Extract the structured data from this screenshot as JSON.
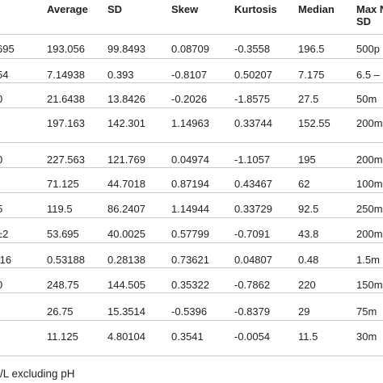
{
  "table": {
    "headers": [
      "",
      "Average",
      "SD",
      "Skew",
      "Kurtosis",
      "Median",
      "Max NSD"
    ],
    "rows": [
      [
        "695",
        "193.056",
        "99.8493",
        "0.08709",
        "-0.3558",
        "196.5",
        "500p"
      ],
      [
        "54",
        "7.14938",
        "0.393",
        "-0.8107",
        "0.50207",
        "7.175",
        "6.5 –"
      ],
      [
        "0",
        "21.6438",
        "13.8426",
        "-0.2026",
        "-1.8575",
        "27.5",
        "50m"
      ],
      [
        "",
        "197.163",
        "142.301",
        "1.14963",
        "0.33744",
        "152.55",
        "200m"
      ],
      [
        "0",
        "227.563",
        "121.769",
        "0.04974",
        "-1.1057",
        "195",
        "200m"
      ],
      [
        "",
        "71.125",
        "44.7018",
        "0.87194",
        "0.43467",
        "62",
        "100m"
      ],
      [
        "5",
        "119.5",
        "86.2407",
        "1.14944",
        "0.33729",
        "92.5",
        "250m"
      ],
      [
        "±2",
        "53.695",
        "40.0025",
        "0.57799",
        "-0.7091",
        "43.8",
        "200m"
      ],
      [
        ".16",
        "0.53188",
        "0.28138",
        "0.73621",
        "0.04807",
        "0.48",
        "1.5m"
      ],
      [
        "0",
        "248.75",
        "144.505",
        "0.35322",
        "-0.7862",
        "220",
        "150m"
      ],
      [
        "",
        "26.75",
        "15.3514",
        "-0.5396",
        "-0.8379",
        "29",
        "75m"
      ],
      [
        "",
        "11.125",
        "4.80104",
        "0.3541",
        "-0.0054",
        "11.5",
        "30m"
      ]
    ]
  },
  "footnote": "/L excluding pH"
}
